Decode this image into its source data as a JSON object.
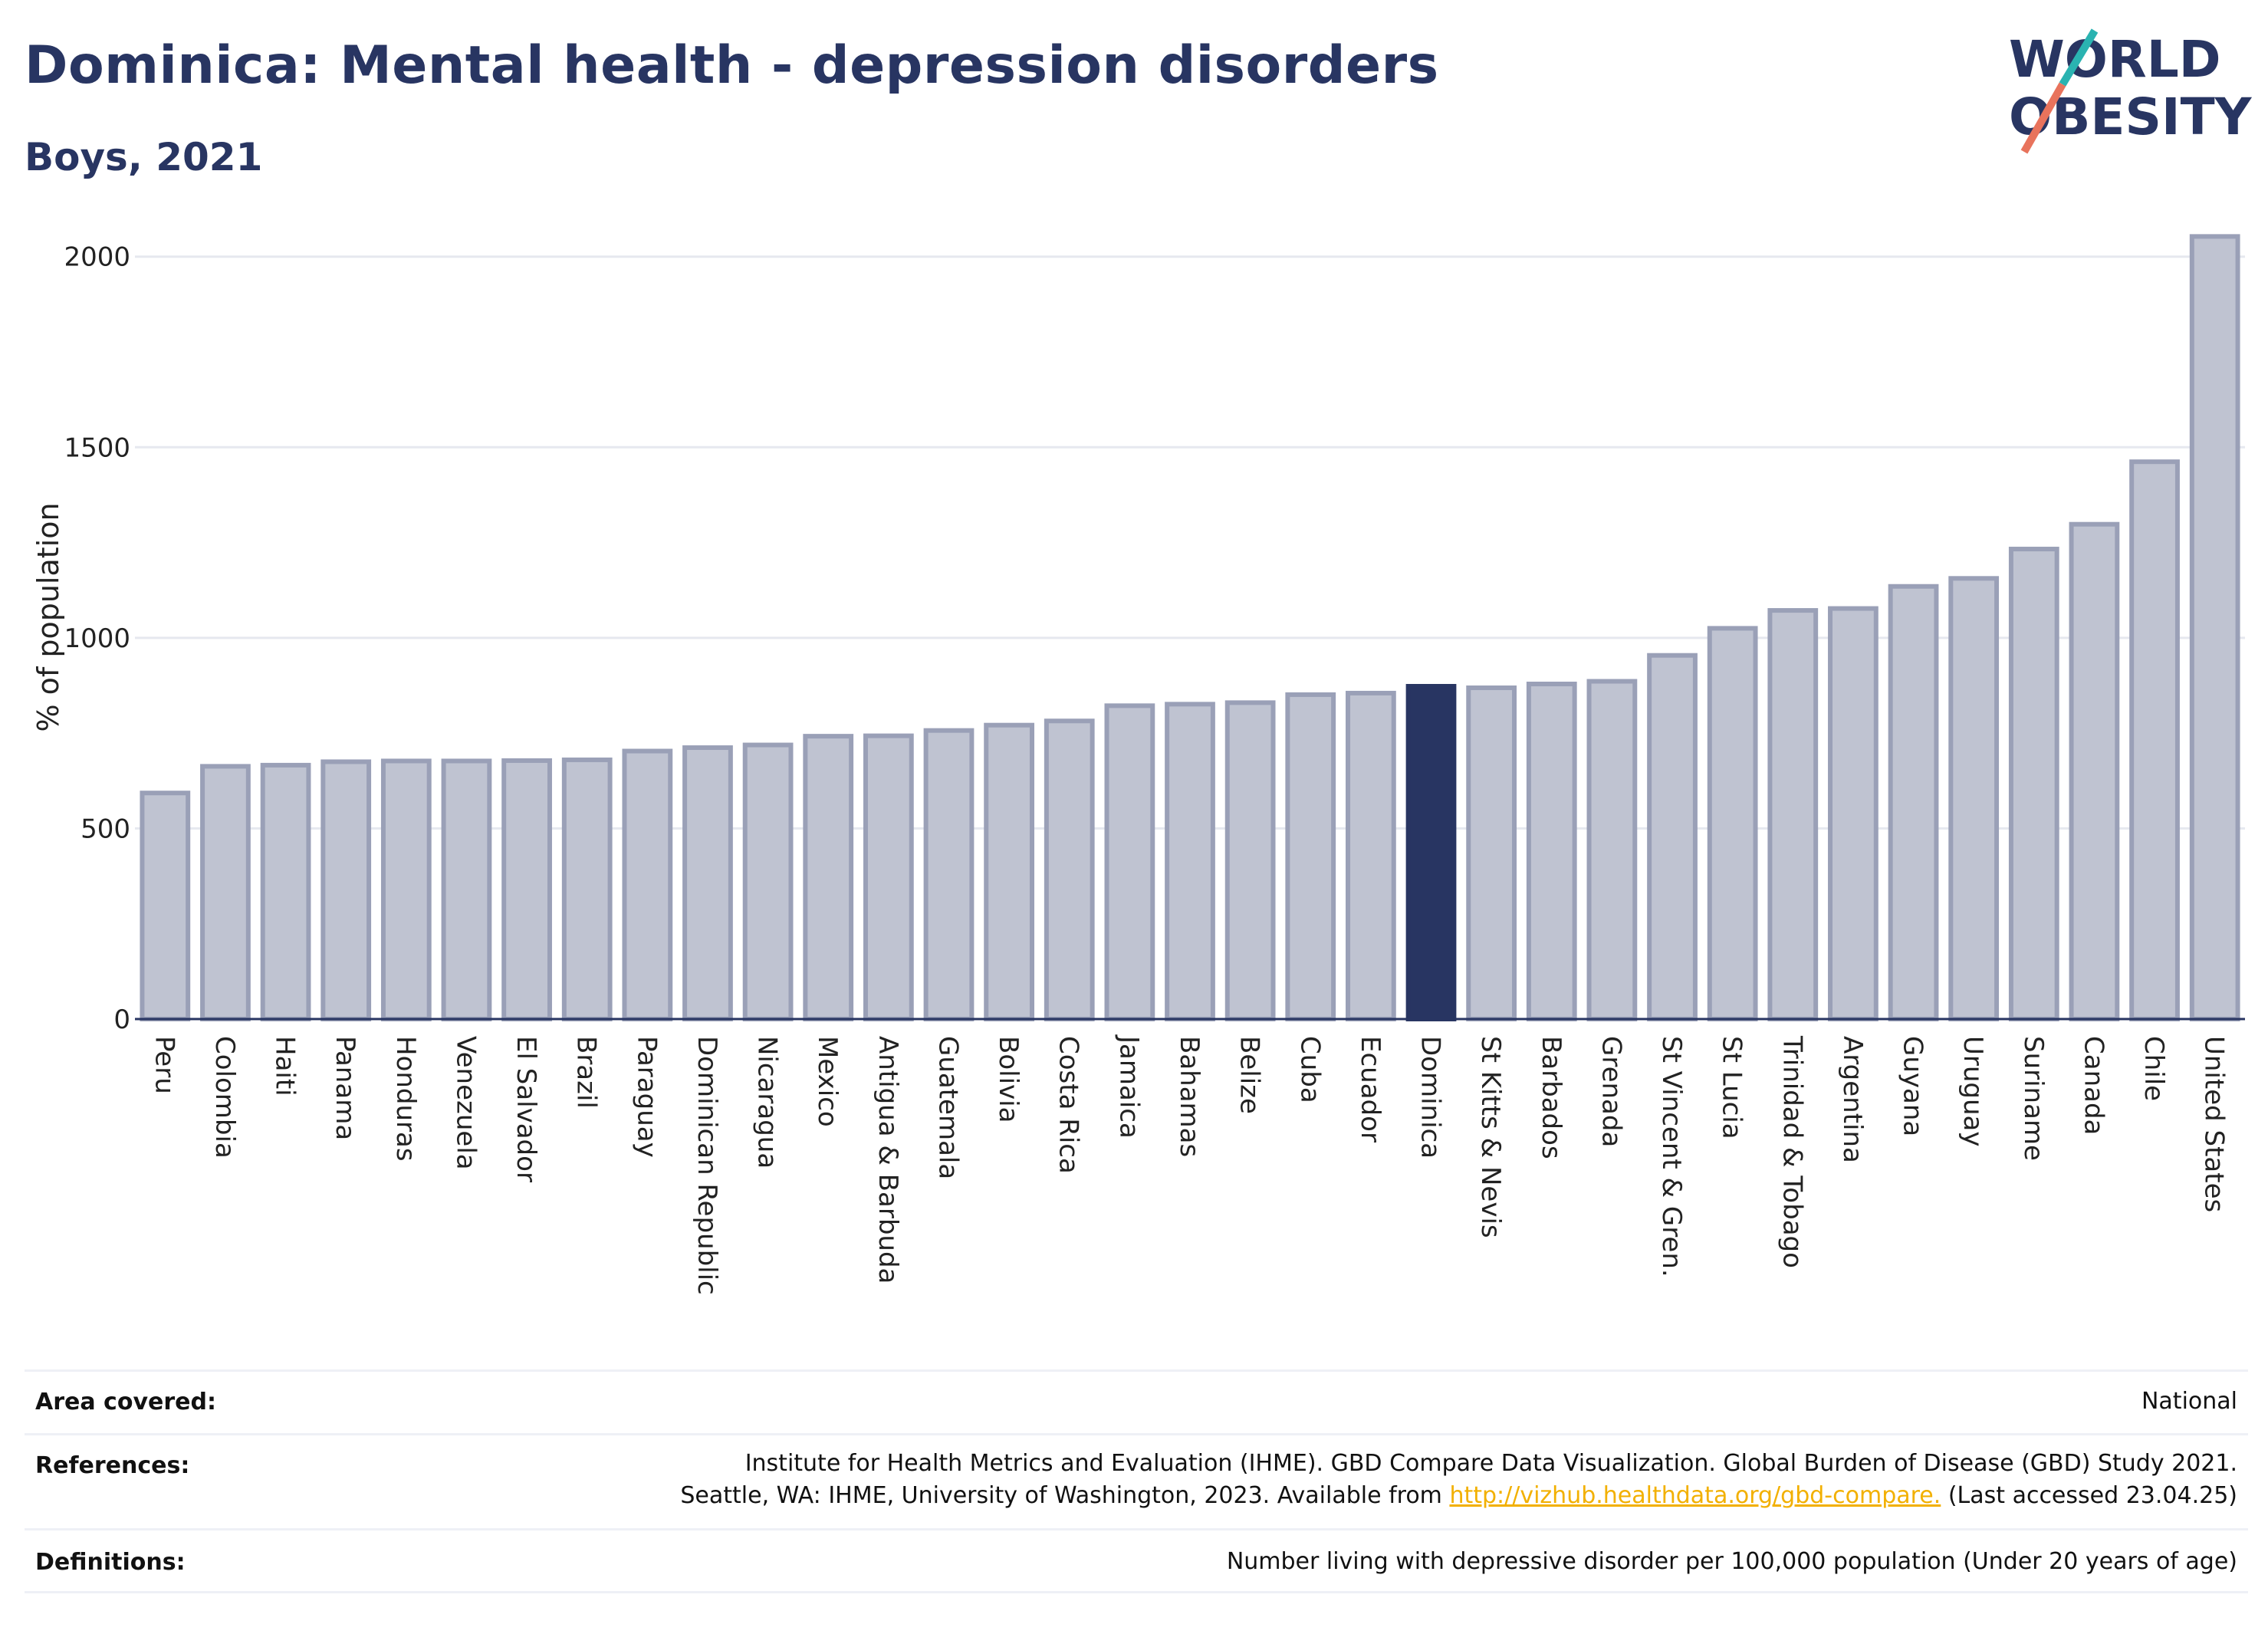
{
  "header": {
    "title": "Dominica: Mental health - depression disorders",
    "subtitle": "Boys, 2021"
  },
  "logo": {
    "line1": "WORLD",
    "line2": "OBESITY",
    "accent_colors": [
      "#2ab3b1",
      "#e8735c"
    ]
  },
  "colors": {
    "highlight": "#283562",
    "bar_fill": "#bfc3d1",
    "bar_edge": "#9aa0b7",
    "grid": "#e6e8ef",
    "link": "#f2b000"
  },
  "chart_data": {
    "type": "bar",
    "ylabel": "% of population",
    "xlabel": "",
    "ylim": [
      0,
      2100
    ],
    "yticks": [
      0,
      500,
      1000,
      1500,
      2000
    ],
    "grid": true,
    "highlight": "Dominica",
    "categories": [
      "Peru",
      "Colombia",
      "Haiti",
      "Panama",
      "Honduras",
      "Venezuela",
      "El Salvador",
      "Brazil",
      "Paraguay",
      "Dominican Republic",
      "Nicaragua",
      "Mexico",
      "Antigua & Barbuda",
      "Guatemala",
      "Bolivia",
      "Costa Rica",
      "Jamaica",
      "Bahamas",
      "Belize",
      "Cuba",
      "Ecuador",
      "Dominica",
      "St Kitts & Nevis",
      "Barbados",
      "Grenada",
      "St Vincent & Gren.",
      "St Lucia",
      "Trinidad & Tobago",
      "Argentina",
      "Guyana",
      "Uruguay",
      "Suriname",
      "Canada",
      "Chile",
      "United States"
    ],
    "values": [
      593,
      663,
      666,
      675,
      677,
      677,
      678,
      680,
      703,
      712,
      719,
      742,
      743,
      757,
      771,
      782,
      822,
      826,
      830,
      851,
      855,
      873,
      869,
      879,
      886,
      954,
      1025,
      1072,
      1077,
      1135,
      1156,
      1233,
      1298,
      1462,
      2053
    ]
  },
  "footer": {
    "area_label": "Area covered:",
    "area_value": "National",
    "references_label": "References:",
    "references_line1": "Institute for Health Metrics and Evaluation (IHME). GBD Compare Data Visualization. Global Burden of Disease (GBD) Study 2021.",
    "references_line2_pre": "Seattle, WA: IHME, University of Washington, 2023. Available from ",
    "references_link": "http://vizhub.healthdata.org/gbd-compare.",
    "references_line2_post": " (Last accessed 23.04.25)",
    "definitions_label": "Definitions:",
    "definitions_value": "Number living with depressive disorder per 100,000 population (Under 20 years of age)"
  }
}
